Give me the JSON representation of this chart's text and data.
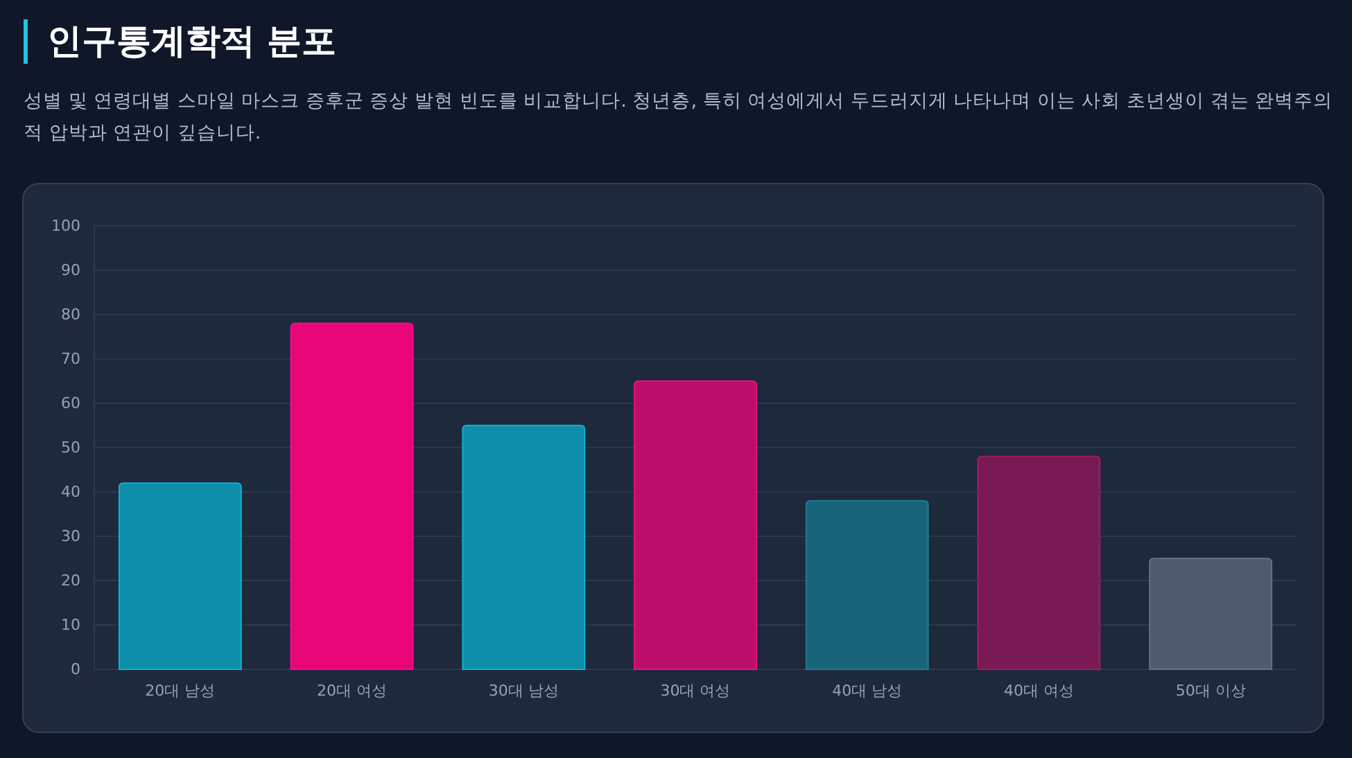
{
  "chart_data": {
    "type": "bar",
    "title": "인구통계학적 분포",
    "subtitle": "성별 및 연령대별 스마일 마스크 증후군 증상 발현 빈도를 비교합니다. 청년층, 특히 여성에게서 두드러지게 나타나며 이는 사회 초년생이 겪는 완벽주의적 압박과 연관이 깊습니다.",
    "categories": [
      "20대 남성",
      "20대 여성",
      "30대 남성",
      "30대 여성",
      "40대 남성",
      "40대 여성",
      "50대 이상"
    ],
    "values": [
      42,
      78,
      55,
      65,
      38,
      48,
      25
    ],
    "colors": [
      "#0e8ea9",
      "#e80578",
      "#0e8ea9",
      "#bb0e6a",
      "#176479",
      "#7a1a55",
      "#4e5b6e"
    ],
    "ylim": [
      0,
      100
    ],
    "yticks": [
      0,
      10,
      20,
      30,
      40,
      50,
      60,
      70,
      80,
      90,
      100
    ],
    "grid": "y"
  }
}
